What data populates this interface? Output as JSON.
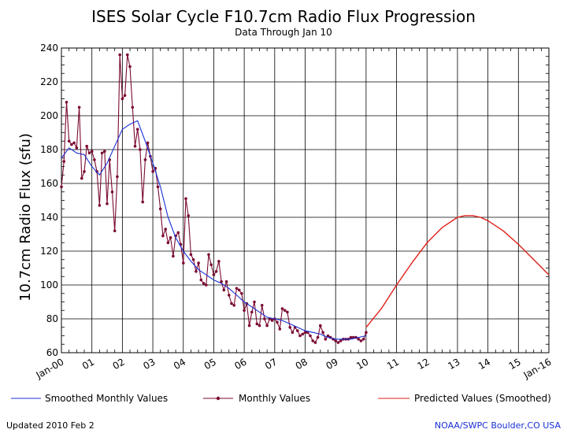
{
  "chart_data": {
    "type": "line",
    "title": "ISES Solar Cycle F10.7cm Radio Flux Progression",
    "subtitle": "Data Through Jan 10",
    "ylabel": "10.7cm Radio Flux (sfu)",
    "xlabel": "",
    "xlim": [
      2000.0,
      2016.0
    ],
    "ylim": [
      60,
      240
    ],
    "yticks": [
      60,
      80,
      100,
      120,
      140,
      160,
      180,
      200,
      220,
      240
    ],
    "xticks": [
      {
        "x": 2000,
        "label": "Jan-00"
      },
      {
        "x": 2001,
        "label": "01"
      },
      {
        "x": 2002,
        "label": "02"
      },
      {
        "x": 2003,
        "label": "03"
      },
      {
        "x": 2004,
        "label": "04"
      },
      {
        "x": 2005,
        "label": "05"
      },
      {
        "x": 2006,
        "label": "06"
      },
      {
        "x": 2007,
        "label": "07"
      },
      {
        "x": 2008,
        "label": "08"
      },
      {
        "x": 2009,
        "label": "09"
      },
      {
        "x": 2010,
        "label": "10"
      },
      {
        "x": 2011,
        "label": "11"
      },
      {
        "x": 2012,
        "label": "12"
      },
      {
        "x": 2013,
        "label": "13"
      },
      {
        "x": 2014,
        "label": "14"
      },
      {
        "x": 2015,
        "label": "15"
      },
      {
        "x": 2016,
        "label": "Jan-16"
      }
    ],
    "grid": true,
    "series": [
      {
        "name": "Monthly Values",
        "color": "#7a0a33",
        "marker": "dot",
        "x": [
          2000.0,
          2000.083,
          2000.167,
          2000.25,
          2000.333,
          2000.417,
          2000.5,
          2000.583,
          2000.667,
          2000.75,
          2000.833,
          2000.917,
          2001.0,
          2001.083,
          2001.167,
          2001.25,
          2001.333,
          2001.417,
          2001.5,
          2001.583,
          2001.667,
          2001.75,
          2001.833,
          2001.917,
          2002.0,
          2002.083,
          2002.167,
          2002.25,
          2002.333,
          2002.417,
          2002.5,
          2002.583,
          2002.667,
          2002.75,
          2002.833,
          2002.917,
          2003.0,
          2003.083,
          2003.167,
          2003.25,
          2003.333,
          2003.417,
          2003.5,
          2003.583,
          2003.667,
          2003.75,
          2003.833,
          2003.917,
          2004.0,
          2004.083,
          2004.167,
          2004.25,
          2004.333,
          2004.417,
          2004.5,
          2004.583,
          2004.667,
          2004.75,
          2004.833,
          2004.917,
          2005.0,
          2005.083,
          2005.167,
          2005.25,
          2005.333,
          2005.417,
          2005.5,
          2005.583,
          2005.667,
          2005.75,
          2005.833,
          2005.917,
          2006.0,
          2006.083,
          2006.167,
          2006.25,
          2006.333,
          2006.417,
          2006.5,
          2006.583,
          2006.667,
          2006.75,
          2006.833,
          2006.917,
          2007.0,
          2007.083,
          2007.167,
          2007.25,
          2007.333,
          2007.417,
          2007.5,
          2007.583,
          2007.667,
          2007.75,
          2007.833,
          2007.917,
          2008.0,
          2008.083,
          2008.167,
          2008.25,
          2008.333,
          2008.417,
          2008.5,
          2008.583,
          2008.667,
          2008.75,
          2008.833,
          2008.917,
          2009.0,
          2009.083,
          2009.167,
          2009.25,
          2009.333,
          2009.417,
          2009.5,
          2009.583,
          2009.667,
          2009.75,
          2009.833,
          2009.917,
          2010.0
        ],
        "values": [
          158,
          173,
          208,
          185,
          183,
          184,
          181,
          205,
          163,
          167,
          182,
          178,
          179,
          174,
          167,
          147,
          178,
          179,
          148,
          174,
          155,
          132,
          164,
          236,
          210,
          212,
          236,
          229,
          205,
          182,
          192,
          180,
          149,
          174,
          184,
          176,
          167,
          169,
          158,
          145,
          129,
          133,
          125,
          128,
          117,
          129,
          131,
          124,
          113,
          151,
          141,
          118,
          115,
          108,
          113,
          103,
          101,
          100,
          118,
          112,
          106,
          108,
          114,
          102,
          97,
          102,
          94,
          89,
          88,
          98,
          97,
          95,
          85,
          89,
          76,
          84,
          90,
          77,
          76,
          88,
          80,
          76,
          80,
          79,
          80,
          78,
          74,
          86,
          85,
          84,
          75,
          72,
          75,
          73,
          70,
          71,
          72,
          72,
          70,
          67,
          66,
          69,
          76,
          72,
          68,
          70,
          69,
          68,
          67,
          66,
          67,
          68,
          68,
          68,
          69,
          69,
          69,
          68,
          67,
          68,
          72
        ]
      },
      {
        "name": "Smoothed Monthly Values",
        "color": "#1a2fd6",
        "x": [
          2000.0,
          2000.25,
          2000.5,
          2000.75,
          2001.0,
          2001.25,
          2001.5,
          2001.75,
          2002.0,
          2002.25,
          2002.5,
          2002.75,
          2003.0,
          2003.25,
          2003.5,
          2003.75,
          2004.0,
          2004.25,
          2004.5,
          2004.75,
          2005.0,
          2005.25,
          2005.5,
          2005.75,
          2006.0,
          2006.25,
          2006.5,
          2006.75,
          2007.0,
          2007.25,
          2007.5,
          2007.75,
          2008.0,
          2008.25,
          2008.5,
          2008.75,
          2009.0,
          2009.25,
          2009.5,
          2009.75,
          2010.0
        ],
        "values": [
          175,
          181,
          178,
          177,
          170,
          165,
          172,
          182,
          192,
          195,
          197,
          185,
          172,
          158,
          140,
          128,
          120,
          114,
          109,
          106,
          103,
          101,
          98,
          94,
          90,
          87,
          84,
          81,
          80,
          79,
          77,
          75,
          73,
          72,
          71,
          69,
          68,
          68,
          68,
          69,
          70
        ]
      },
      {
        "name": "Predicted Values (Smoothed)",
        "color": "#e0211b",
        "x": [
          2010.0,
          2010.5,
          2011.0,
          2011.5,
          2012.0,
          2012.5,
          2013.0,
          2013.25,
          2013.5,
          2013.75,
          2014.0,
          2014.5,
          2015.0,
          2015.5,
          2016.0
        ],
        "values": [
          75,
          86,
          100,
          113,
          125,
          134,
          140,
          141,
          141,
          140,
          138,
          132,
          124,
          115,
          106
        ]
      }
    ],
    "legend": {
      "placement": "bottom",
      "items": [
        "Smoothed Monthly Values",
        "Monthly Values",
        "Predicted Values (Smoothed)"
      ]
    }
  },
  "footer": {
    "updated": "Updated 2010 Feb  2",
    "credit": "NOAA/SWPC Boulder,CO USA"
  }
}
